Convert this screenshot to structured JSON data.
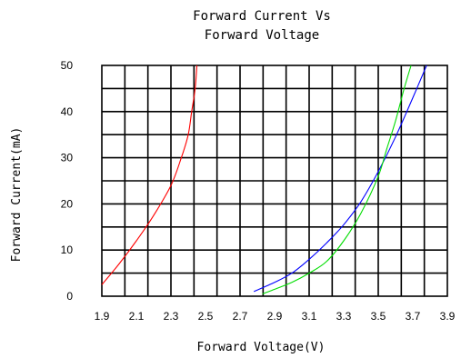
{
  "chart_data": {
    "type": "line",
    "title": [
      "Forward Current Vs",
      "Forward Voltage"
    ],
    "xlabel": "Forward Voltage(V)",
    "ylabel": "Forward Current(mA)",
    "xlim": [
      1.9,
      3.9
    ],
    "ylim": [
      0,
      50
    ],
    "xticks": [
      "1.9",
      "2.1",
      "2.3",
      "2.5",
      "2.7",
      "2.9",
      "3.1",
      "3.3",
      "3.5",
      "3.7",
      "3.9"
    ],
    "yticks": [
      "0",
      "10",
      "20",
      "30",
      "40",
      "50"
    ],
    "grid": true,
    "series": [
      {
        "color": "#ff0000",
        "x": [
          1.9,
          2.0,
          2.1,
          2.2,
          2.3,
          2.36,
          2.4,
          2.42,
          2.44,
          2.45
        ],
        "y": [
          2.5,
          7,
          12,
          17.5,
          24,
          30,
          35,
          40,
          45,
          50
        ]
      },
      {
        "color": "#0000ff",
        "x": [
          2.78,
          2.9,
          3.0,
          3.1,
          3.2,
          3.3,
          3.4,
          3.5,
          3.6,
          3.7,
          3.78
        ],
        "y": [
          1,
          3,
          5,
          8,
          11.5,
          15.5,
          20.5,
          27,
          34.5,
          43,
          50
        ]
      },
      {
        "color": "#00dd00",
        "x": [
          2.83,
          2.9,
          3.0,
          3.1,
          3.2,
          3.3,
          3.4,
          3.5,
          3.55,
          3.6,
          3.65,
          3.69
        ],
        "y": [
          0.5,
          1.5,
          3,
          5,
          7.5,
          12,
          18,
          26,
          32,
          38,
          45,
          50
        ]
      }
    ]
  }
}
